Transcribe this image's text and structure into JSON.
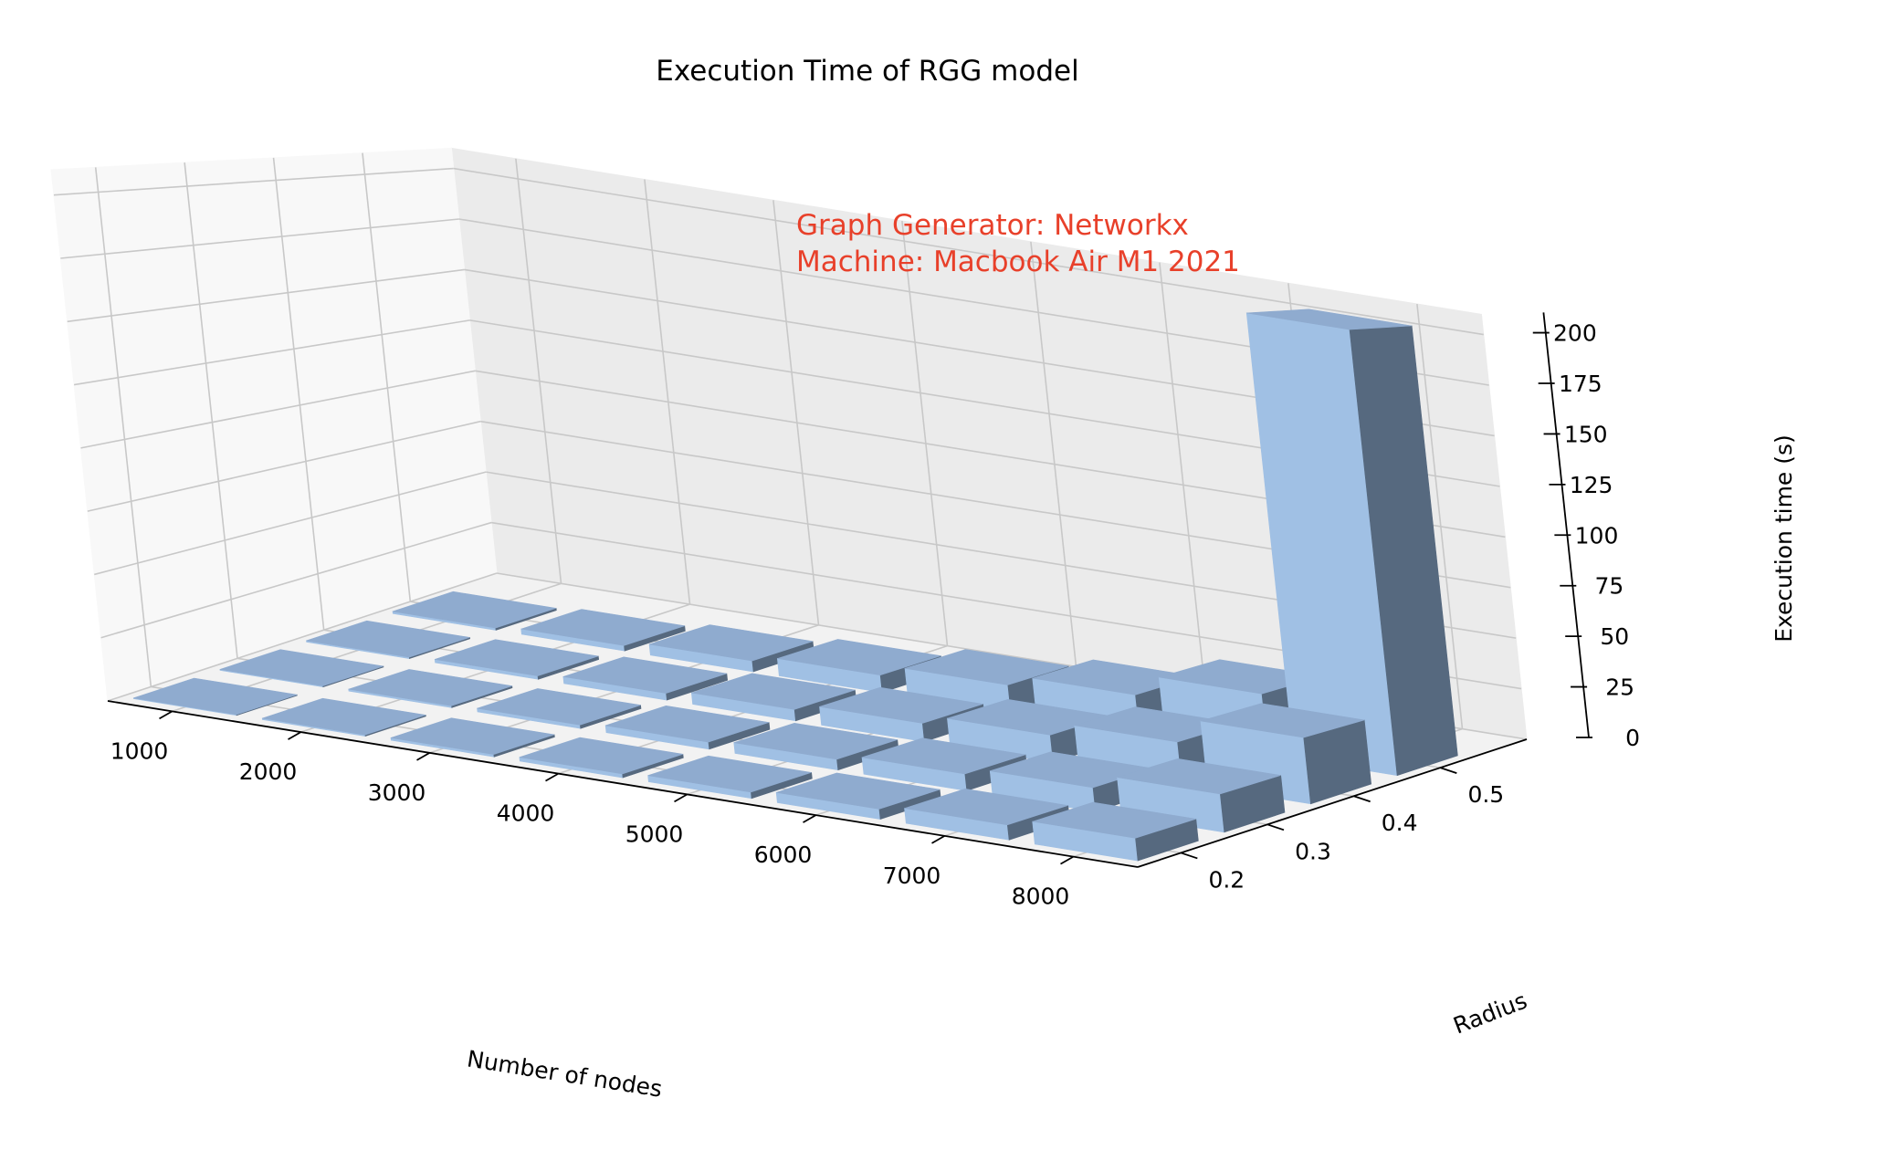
{
  "chart_data": {
    "type": "bar3d",
    "title": "Execution Time of RGG model",
    "xlabel": "Number of nodes",
    "ylabel": "Radius",
    "zlabel": "Execution time (s)",
    "x_ticks": [
      "1000",
      "2000",
      "3000",
      "4000",
      "5000",
      "6000",
      "7000",
      "8000"
    ],
    "y_ticks": [
      "0.2",
      "0.3",
      "0.4",
      "0.5"
    ],
    "z_ticks": [
      "0",
      "25",
      "50",
      "75",
      "100",
      "125",
      "150",
      "175",
      "200"
    ],
    "x_values": [
      1000,
      2000,
      3000,
      4000,
      5000,
      6000,
      7000,
      8000
    ],
    "y_values": [
      0.2,
      0.3,
      0.4,
      0.5
    ],
    "zlim": [
      0,
      210
    ],
    "annotation_lines": [
      "Graph Generator: Networkx",
      "Machine: Macbook Air M1 2021"
    ],
    "annotation_color": "#e8402a",
    "bar_color": "#a0c0e4",
    "grid": true,
    "values": [
      [
        0.3,
        0.4,
        0.6,
        1.0
      ],
      [
        0.5,
        0.8,
        1.5,
        2.5
      ],
      [
        1.0,
        1.5,
        3.0,
        5.0
      ],
      [
        1.5,
        3.0,
        5.0,
        8.0
      ],
      [
        2.5,
        4.5,
        8.0,
        13.0
      ],
      [
        4.0,
        7.0,
        12.0,
        18.0
      ],
      [
        6.0,
        10.0,
        18.0,
        28.0
      ],
      [
        9.0,
        16.0,
        29.0,
        205.0
      ]
    ]
  }
}
